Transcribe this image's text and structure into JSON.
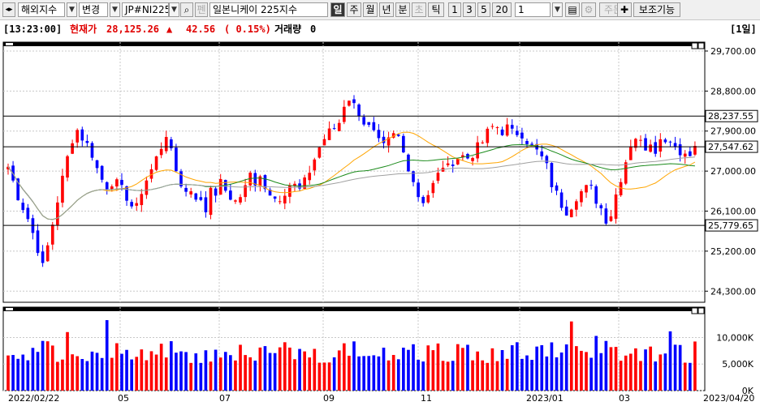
{
  "toolbar": {
    "market_label": "해외지수",
    "change_label": "변경",
    "symbol_value": "JP#NI225",
    "pen_label": "펜",
    "name_value": "일본니케이 225지수",
    "period_buttons": [
      "일",
      "주",
      "월",
      "년",
      "분",
      "초",
      "틱"
    ],
    "active_period": "일",
    "interval_buttons": [
      "1",
      "3",
      "5",
      "20"
    ],
    "count_value": "1",
    "order_label": "주문",
    "assist_label": "보조기능",
    "icons": [
      "chevron-left-right-icon",
      "dropdown-arrow-icon",
      "search-icon",
      "save-icon",
      "gear-icon",
      "plus-icon"
    ]
  },
  "info": {
    "time": "[13:23:00]",
    "price_label": "현재가",
    "price": "28,125.26",
    "change_arrow": "▲",
    "change": "42.56",
    "change_pct": "( 0.15%)",
    "volume_label": "거래량",
    "volume": "0",
    "period_tag": "[1일]"
  },
  "colors": {
    "up": "#ff0000",
    "down": "#0000ff",
    "ma5": "#e00000",
    "ma20": "#0000d0",
    "ma60": "#ffa500",
    "ma120": "#1a8a1a",
    "ma240": "#a0a0a0",
    "hline": "#000000"
  },
  "chart_data": {
    "type": "candlestick",
    "price_axis": {
      "ticks": [
        "29,700.00",
        "28,800.00",
        "27,900.00",
        "27,000.00",
        "26,100.00",
        "25,200.00",
        "24,300.00"
      ],
      "range": [
        24050,
        29900
      ]
    },
    "horizontal_levels": [
      {
        "value": 28237.55,
        "label": "28,237.55"
      },
      {
        "value": 27547.62,
        "label": "27,547.62"
      },
      {
        "value": 25779.65,
        "label": "25,779.65"
      }
    ],
    "volume_axis": {
      "ticks": [
        "10,000K",
        "5,000K",
        "0K"
      ],
      "max": 14500
    },
    "x_labels": [
      "2022/02/22",
      "05",
      "07",
      "09",
      "11",
      "2023/01",
      "03",
      "2023/04/20"
    ],
    "close_path": [
      [
        0,
        27100
      ],
      [
        8,
        26450
      ],
      [
        16,
        25950
      ],
      [
        24,
        25300
      ],
      [
        28,
        24800
      ],
      [
        34,
        25500
      ],
      [
        40,
        26300
      ],
      [
        46,
        27000
      ],
      [
        52,
        27700
      ],
      [
        56,
        27950
      ],
      [
        62,
        27700
      ],
      [
        68,
        27450
      ],
      [
        74,
        26950
      ],
      [
        80,
        26650
      ],
      [
        86,
        26800
      ],
      [
        92,
        26600
      ],
      [
        98,
        26400
      ],
      [
        104,
        26050
      ],
      [
        110,
        26650
      ],
      [
        116,
        26950
      ],
      [
        120,
        27200
      ],
      [
        126,
        27600
      ],
      [
        130,
        27900
      ],
      [
        134,
        27300
      ],
      [
        140,
        26800
      ],
      [
        146,
        26500
      ],
      [
        150,
        26600
      ],
      [
        156,
        26350
      ],
      [
        162,
        26100
      ],
      [
        166,
        26700
      ],
      [
        170,
        26550
      ],
      [
        176,
        26800
      ],
      [
        182,
        26250
      ],
      [
        188,
        26400
      ],
      [
        194,
        26650
      ],
      [
        198,
        27000
      ],
      [
        202,
        26600
      ],
      [
        206,
        26850
      ],
      [
        210,
        26700
      ],
      [
        216,
        26450
      ],
      [
        220,
        26350
      ],
      [
        226,
        26550
      ],
      [
        232,
        26750
      ],
      [
        238,
        26550
      ],
      [
        242,
        26700
      ],
      [
        248,
        27100
      ],
      [
        254,
        27500
      ],
      [
        260,
        27800
      ],
      [
        266,
        27950
      ],
      [
        270,
        28000
      ],
      [
        274,
        28450
      ],
      [
        278,
        28700
      ],
      [
        282,
        28500
      ],
      [
        288,
        28300
      ],
      [
        292,
        28050
      ],
      [
        298,
        27900
      ],
      [
        302,
        27650
      ],
      [
        308,
        27500
      ],
      [
        314,
        27800
      ],
      [
        320,
        27750
      ],
      [
        324,
        27350
      ],
      [
        330,
        26950
      ],
      [
        334,
        26550
      ],
      [
        338,
        26300
      ],
      [
        344,
        26500
      ],
      [
        350,
        26800
      ],
      [
        356,
        27150
      ],
      [
        360,
        27050
      ],
      [
        364,
        27250
      ],
      [
        370,
        27350
      ],
      [
        376,
        27300
      ],
      [
        382,
        27450
      ],
      [
        388,
        27650
      ],
      [
        392,
        27850
      ],
      [
        398,
        28050
      ],
      [
        404,
        27900
      ],
      [
        410,
        28000
      ],
      [
        414,
        27750
      ],
      [
        418,
        27950
      ],
      [
        422,
        27800
      ],
      [
        428,
        27550
      ],
      [
        434,
        27400
      ],
      [
        440,
        27150
      ],
      [
        444,
        26750
      ],
      [
        450,
        26400
      ],
      [
        456,
        26100
      ],
      [
        460,
        26200
      ],
      [
        466,
        26500
      ],
      [
        470,
        26550
      ],
      [
        476,
        26650
      ],
      [
        480,
        26400
      ],
      [
        484,
        26250
      ],
      [
        488,
        25950
      ],
      [
        492,
        25900
      ],
      [
        496,
        26350
      ],
      [
        500,
        26750
      ],
      [
        504,
        27100
      ],
      [
        508,
        27500
      ],
      [
        512,
        27850
      ],
      [
        516,
        27650
      ],
      [
        522,
        27550
      ],
      [
        526,
        27700
      ],
      [
        530,
        27500
      ],
      [
        536,
        27800
      ],
      [
        540,
        27700
      ],
      [
        546,
        27650
      ],
      [
        550,
        27350
      ],
      [
        556,
        27450
      ],
      [
        562,
        27500
      ],
      [
        566,
        27650
      ]
    ],
    "ma_series": [
      "MA5",
      "MA20",
      "MA60",
      "MA120",
      "MA240"
    ]
  }
}
